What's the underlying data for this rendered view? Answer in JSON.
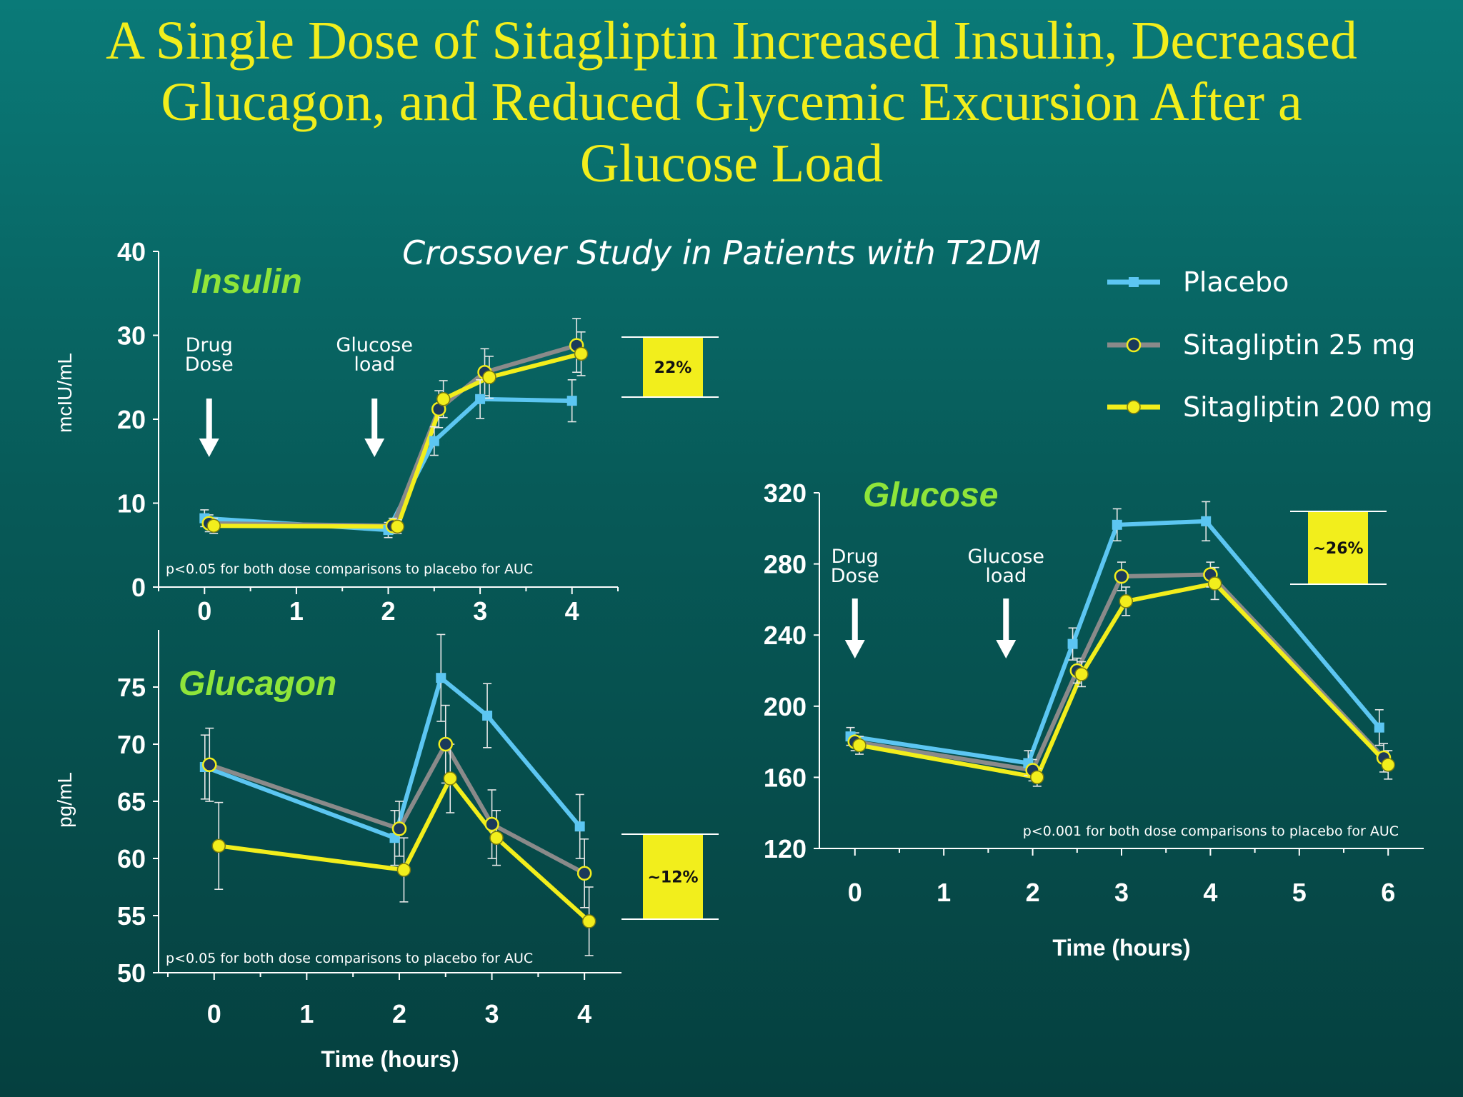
{
  "title": "A Single Dose of Sitagliptin Increased Insulin, Decreased Glucagon, and Reduced Glycemic Excursion After a Glucose Load",
  "subtitle": "Crossover Study in Patients with T2DM",
  "colors": {
    "placebo": "#5cc6f2",
    "sita25": "#8a8a8a",
    "sita200": "#f2ee1c",
    "title": "#f2ee1c",
    "panel_title": "#8fe53a",
    "pct_box": "#f2ee1c"
  },
  "legend": [
    {
      "label": "Placebo",
      "series": "placebo",
      "marker": "square"
    },
    {
      "label": "Sitagliptin 25 mg",
      "series": "sita25",
      "marker": "open-circle"
    },
    {
      "label": "Sitagliptin 200 mg",
      "series": "sita200",
      "marker": "filled-circle"
    }
  ],
  "chart_data": [
    {
      "id": "insulin",
      "type": "line",
      "panel_title": "Insulin",
      "xlabel": "",
      "ylabel": "mcIU/mL",
      "xlim": [
        -0.5,
        4.5
      ],
      "ylim": [
        0,
        40
      ],
      "x_ticks": [
        0,
        1,
        2,
        3,
        4
      ],
      "y_ticks": [
        0,
        10,
        20,
        30,
        40
      ],
      "annotations": [
        {
          "x": 0.05,
          "lines": [
            "Drug",
            "Dose"
          ]
        },
        {
          "x": 1.85,
          "lines": [
            "Glucose",
            "load"
          ]
        }
      ],
      "note": "p<0.05 for both dose comparisons to placebo for AUC",
      "reduction": "22%",
      "series": [
        {
          "key": "placebo",
          "name": "Placebo",
          "x": [
            0,
            2,
            2.5,
            3,
            4
          ],
          "y": [
            8.2,
            6.8,
            17.4,
            22.4,
            22.2
          ],
          "err": [
            1.0,
            0.9,
            1.7,
            2.3,
            2.5
          ]
        },
        {
          "key": "sita25",
          "name": "Sitagliptin 25 mg",
          "x": [
            0.05,
            2.05,
            2.55,
            3.05,
            4.05
          ],
          "y": [
            7.6,
            7.3,
            21.2,
            25.6,
            28.8
          ],
          "err": [
            1.0,
            0.9,
            2.2,
            2.8,
            3.2
          ]
        },
        {
          "key": "sita200",
          "name": "Sitagliptin 200 mg",
          "x": [
            0.1,
            2.1,
            2.6,
            3.1,
            4.1
          ],
          "y": [
            7.3,
            7.2,
            22.4,
            25.0,
            27.8
          ],
          "err": [
            0.9,
            0.8,
            2.2,
            2.5,
            2.6
          ]
        }
      ]
    },
    {
      "id": "glucagon",
      "type": "line",
      "panel_title": "Glucagon",
      "xlabel": "Time (hours)",
      "ylabel": "pg/mL",
      "xlim": [
        -0.6,
        4.4
      ],
      "ylim": [
        50,
        80
      ],
      "x_ticks": [
        0,
        1,
        2,
        3,
        4
      ],
      "y_ticks": [
        50,
        55,
        60,
        65,
        70,
        75
      ],
      "note": "p<0.05 for both dose comparisons to placebo for AUC",
      "reduction": "~12%",
      "series": [
        {
          "key": "placebo",
          "name": "Placebo",
          "x": [
            -0.1,
            1.95,
            2.45,
            2.95,
            3.95
          ],
          "y": [
            68.0,
            61.8,
            75.8,
            72.5,
            62.8
          ],
          "err": [
            2.8,
            2.4,
            3.8,
            2.8,
            2.8
          ]
        },
        {
          "key": "sita25",
          "name": "Sitagliptin 25 mg",
          "x": [
            -0.05,
            2.0,
            2.5,
            3.0,
            4.0
          ],
          "y": [
            68.2,
            62.6,
            70.0,
            63.0,
            58.7
          ],
          "err": [
            3.2,
            2.4,
            3.4,
            3.0,
            3.0
          ]
        },
        {
          "key": "sita200",
          "name": "Sitagliptin 200 mg",
          "x": [
            0.05,
            2.05,
            2.55,
            3.05,
            4.05
          ],
          "y": [
            61.1,
            59.0,
            67.0,
            61.8,
            54.5
          ],
          "err": [
            3.8,
            2.8,
            3.0,
            2.4,
            3.0
          ]
        }
      ]
    },
    {
      "id": "glucose",
      "type": "line",
      "panel_title": "Glucose",
      "xlabel": "Time (hours)",
      "ylabel": "",
      "xlim": [
        -0.4,
        6.4
      ],
      "ylim": [
        120,
        320
      ],
      "x_ticks": [
        0,
        1,
        2,
        3,
        4,
        5,
        6
      ],
      "y_ticks": [
        120,
        160,
        200,
        240,
        280,
        320
      ],
      "annotations": [
        {
          "x": 0.0,
          "lines": [
            "Drug",
            "Dose"
          ]
        },
        {
          "x": 1.7,
          "lines": [
            "Glucose",
            "load"
          ]
        }
      ],
      "note": "p<0.001 for both dose comparisons to placebo for AUC",
      "reduction": "~26%",
      "series": [
        {
          "key": "placebo",
          "name": "Placebo",
          "x": [
            -0.05,
            1.95,
            2.45,
            2.95,
            3.95,
            5.9
          ],
          "y": [
            183,
            168,
            235,
            302,
            304,
            188
          ],
          "err": [
            5,
            7,
            9,
            9,
            11,
            10
          ]
        },
        {
          "key": "sita25",
          "name": "Sitagliptin 25 mg",
          "x": [
            0.0,
            2.0,
            2.5,
            3.0,
            4.0,
            5.95
          ],
          "y": [
            180,
            164,
            220,
            273,
            274,
            171
          ],
          "err": [
            5,
            6,
            7,
            8,
            7,
            8
          ]
        },
        {
          "key": "sita200",
          "name": "Sitagliptin 200 mg",
          "x": [
            0.05,
            2.05,
            2.55,
            3.05,
            4.05,
            6.0
          ],
          "y": [
            178,
            160,
            218,
            259,
            269,
            167
          ],
          "err": [
            5,
            5,
            7,
            8,
            9,
            8
          ]
        }
      ]
    }
  ]
}
